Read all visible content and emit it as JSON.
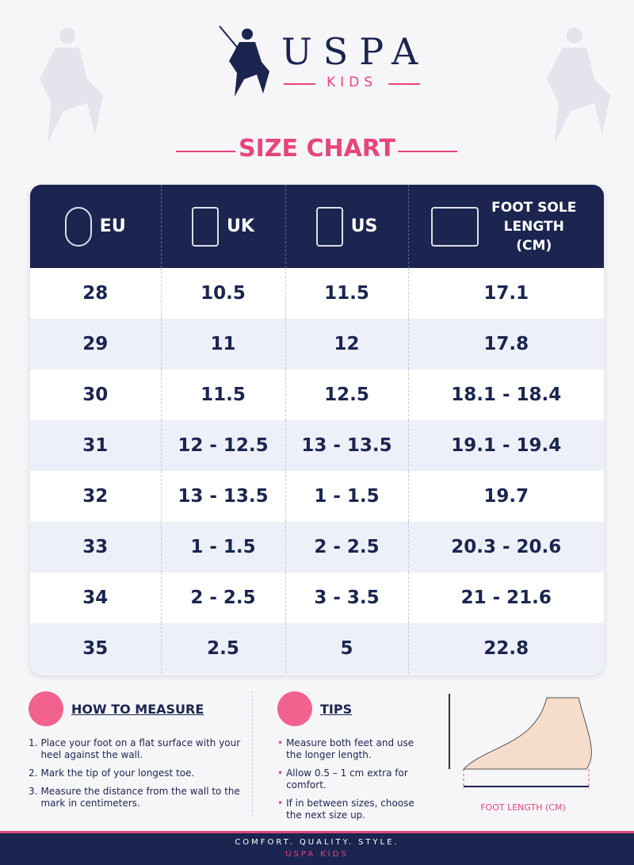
{
  "header": {
    "brand": "USPA",
    "sub_brand": "KIDS",
    "title": "SIZE CHART"
  },
  "table": {
    "headers": [
      "EU",
      "UK",
      "US",
      "FOOT SOLE LENGTH (CM)"
    ],
    "rows": [
      [
        "28",
        "10.5",
        "11.5",
        "17.1"
      ],
      [
        "29",
        "11",
        "12",
        "17.8"
      ],
      [
        "30",
        "11.5",
        "12.5",
        "18.1 - 18.4"
      ],
      [
        "31",
        "12 - 12.5",
        "13 - 13.5",
        "19.1 - 19.4"
      ],
      [
        "32",
        "13 - 13.5",
        "1 - 1.5",
        "19.7"
      ],
      [
        "33",
        "1 - 1.5",
        "2 - 2.5",
        "20.3 - 20.6"
      ],
      [
        "34",
        "2 - 2.5",
        "3 - 3.5",
        "21 - 21.6"
      ],
      [
        "35",
        "2.5",
        "5",
        "22.8"
      ]
    ]
  },
  "how_to_measure": {
    "title": "HOW TO MEASURE",
    "steps": [
      {
        "marker": "1.",
        "text": "Place your foot on a flat surface with your heel against the wall."
      },
      {
        "marker": "2.",
        "text": "Mark the tip of your longest toe."
      },
      {
        "marker": "3.",
        "text": "Measure the distance from the wall to the mark in centimeters."
      }
    ]
  },
  "tips": {
    "title": "TIPS",
    "items": [
      "Measure both feet and use the longer length.",
      "Allow 0.5 – 1 cm extra for comfort.",
      "If in between sizes, choose the next size up."
    ]
  },
  "diagram": {
    "label": "FOOT LENGTH (CM)"
  },
  "footer": {
    "tagline": "COMFORT. QUALITY. STYLE.",
    "brand": "USPA KIDS"
  }
}
